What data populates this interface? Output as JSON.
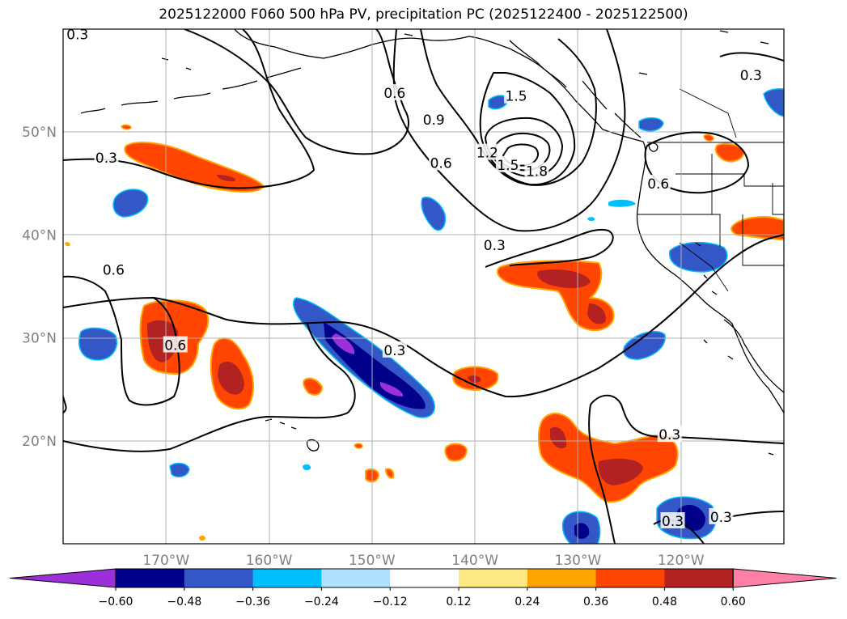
{
  "title": "2025122000 F060 500 hPa PV, precipitation PC (2025122400 - 2025122500)",
  "map": {
    "lon_range": [
      -180,
      -110
    ],
    "lat_range": [
      10,
      60
    ],
    "lat_ticks": [
      {
        "value": 20,
        "label": "20°N"
      },
      {
        "value": 30,
        "label": "30°N"
      },
      {
        "value": 40,
        "label": "40°N"
      },
      {
        "value": 50,
        "label": "50°N"
      }
    ],
    "lon_ticks": [
      {
        "value": -170,
        "label": "170°W"
      },
      {
        "value": -160,
        "label": "160°W"
      },
      {
        "value": -150,
        "label": "150°W"
      },
      {
        "value": -140,
        "label": "140°W"
      },
      {
        "value": -130,
        "label": "130°W"
      },
      {
        "value": -120,
        "label": "120°W"
      }
    ],
    "contour_labels": [
      {
        "text": "0.3",
        "lon": -178.6,
        "lat": 59.5
      },
      {
        "text": "0.3",
        "lon": -113.2,
        "lat": 55.5
      },
      {
        "text": "0.6",
        "lon": -147.8,
        "lat": 53.8
      },
      {
        "text": "1.5",
        "lon": -136.0,
        "lat": 53.5
      },
      {
        "text": "0.9",
        "lon": -144.0,
        "lat": 51.2
      },
      {
        "text": "1.2",
        "lon": -138.8,
        "lat": 48.0
      },
      {
        "text": "1.5",
        "lon": -136.8,
        "lat": 46.8
      },
      {
        "text": "1.8",
        "lon": -134.0,
        "lat": 46.2
      },
      {
        "text": "0.3",
        "lon": -175.8,
        "lat": 47.5
      },
      {
        "text": "0.6",
        "lon": -143.3,
        "lat": 47.0
      },
      {
        "text": "0.6",
        "lon": -122.2,
        "lat": 45.0
      },
      {
        "text": "0.3",
        "lon": -138.1,
        "lat": 39.0
      },
      {
        "text": "0.6",
        "lon": -175.1,
        "lat": 36.6
      },
      {
        "text": "0.6",
        "lon": -169.1,
        "lat": 29.3
      },
      {
        "text": "0.3",
        "lon": -147.8,
        "lat": 28.8
      },
      {
        "text": "0.3",
        "lon": -121.1,
        "lat": 20.6
      },
      {
        "text": "0.3",
        "lon": -120.8,
        "lat": 12.2
      },
      {
        "text": "0.3",
        "lon": -116.1,
        "lat": 12.6
      }
    ]
  },
  "colorbar": {
    "colors": [
      "#9b30d9",
      "#00008b",
      "#3457c8",
      "#00bfff",
      "#aee2ff",
      "#ffffff",
      "#ffe985",
      "#ffa500",
      "#ff4500",
      "#b22222",
      "#ff7fa6"
    ],
    "tick_labels": [
      "−0.60",
      "−0.48",
      "−0.36",
      "−0.24",
      "−0.12",
      "0.12",
      "0.24",
      "0.36",
      "0.48",
      "0.60"
    ]
  }
}
